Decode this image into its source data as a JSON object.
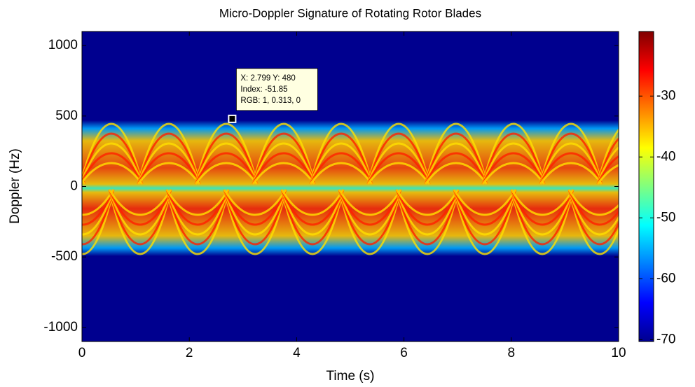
{
  "chart_data": {
    "type": "heatmap",
    "title": "Micro-Doppler Signature of Rotating Rotor Blades",
    "x_label": "Time (s)",
    "y_label": "Doppler (Hz)",
    "xlim": [
      0,
      10
    ],
    "xticks": [
      0,
      2,
      4,
      6,
      8,
      10
    ],
    "ylim": [
      -1100,
      1100
    ],
    "yticks": [
      -1000,
      -500,
      0,
      500,
      1000
    ],
    "colormap": "jet",
    "colorbar": {
      "clim": [
        -70.3,
        -19.4
      ],
      "ticks": [
        -70,
        -60,
        -50,
        -40,
        -30
      ]
    },
    "datatip": {
      "x": 2.799,
      "y": 480,
      "text": [
        "X: 2.799 Y: 480",
        "Index: -51.85",
        "RGB: 1, 0.313, 0"
      ]
    }
  }
}
